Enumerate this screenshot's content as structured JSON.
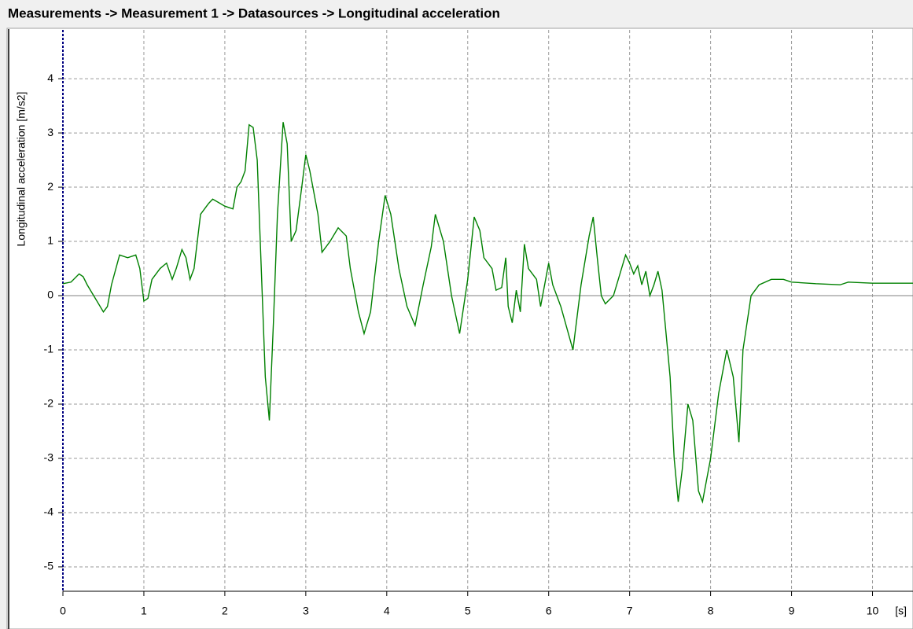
{
  "chart_data": {
    "type": "line",
    "title": "Measurements -> Measurement 1 -> Datasources -> Longitudinal acceleration",
    "ylabel": "Longitudinal acceleration [m/s2]",
    "xlabel": "[s]",
    "xlim": [
      0,
      10.5
    ],
    "ylim": [
      -5.45,
      4.9
    ],
    "xticks": [
      0,
      1,
      2,
      3,
      4,
      5,
      6,
      7,
      8,
      9,
      10
    ],
    "yticks": [
      -5,
      -4,
      -3,
      -2,
      -1,
      0,
      1,
      2,
      3,
      4
    ],
    "grid": true,
    "series": [
      {
        "name": "Longitudinal acceleration",
        "color": "#008000",
        "x": [
          0,
          0.1,
          0.2,
          0.25,
          0.3,
          0.4,
          0.5,
          0.55,
          0.6,
          0.7,
          0.8,
          0.9,
          0.95,
          1.0,
          1.05,
          1.1,
          1.2,
          1.28,
          1.35,
          1.4,
          1.47,
          1.52,
          1.57,
          1.62,
          1.7,
          1.8,
          1.85,
          2.0,
          2.1,
          2.15,
          2.2,
          2.25,
          2.3,
          2.35,
          2.4,
          2.45,
          2.5,
          2.55,
          2.6,
          2.65,
          2.72,
          2.77,
          2.82,
          2.88,
          2.95,
          3.0,
          3.05,
          3.15,
          3.2,
          3.3,
          3.4,
          3.5,
          3.55,
          3.65,
          3.72,
          3.8,
          3.9,
          3.98,
          4.05,
          4.15,
          4.25,
          4.35,
          4.45,
          4.55,
          4.6,
          4.7,
          4.8,
          4.9,
          5.0,
          5.08,
          5.15,
          5.2,
          5.3,
          5.35,
          5.42,
          5.47,
          5.5,
          5.55,
          5.6,
          5.65,
          5.7,
          5.75,
          5.85,
          5.9,
          5.95,
          6.0,
          6.05,
          6.15,
          6.3,
          6.4,
          6.5,
          6.55,
          6.6,
          6.65,
          6.7,
          6.8,
          6.9,
          6.95,
          7.0,
          7.05,
          7.1,
          7.15,
          7.2,
          7.25,
          7.3,
          7.35,
          7.4,
          7.5,
          7.55,
          7.6,
          7.65,
          7.72,
          7.78,
          7.85,
          7.9,
          8.0,
          8.1,
          8.2,
          8.28,
          8.35,
          8.4,
          8.5,
          8.6,
          8.75,
          8.9,
          9.0,
          9.3,
          9.6,
          9.7,
          10.0,
          10.5
        ],
        "values": [
          0.22,
          0.25,
          0.4,
          0.35,
          0.2,
          -0.05,
          -0.3,
          -0.2,
          0.2,
          0.75,
          0.7,
          0.75,
          0.5,
          -0.1,
          -0.05,
          0.3,
          0.5,
          0.6,
          0.3,
          0.5,
          0.85,
          0.7,
          0.3,
          0.5,
          1.5,
          1.7,
          1.78,
          1.65,
          1.6,
          2.0,
          2.1,
          2.3,
          3.15,
          3.1,
          2.5,
          0.5,
          -1.5,
          -2.3,
          -0.5,
          1.5,
          3.2,
          2.8,
          1.0,
          1.2,
          2.0,
          2.6,
          2.3,
          1.5,
          0.8,
          1.0,
          1.25,
          1.1,
          0.5,
          -0.3,
          -0.7,
          -0.3,
          1.0,
          1.85,
          1.5,
          0.5,
          -0.2,
          -0.55,
          0.2,
          0.9,
          1.5,
          1.0,
          0.0,
          -0.7,
          0.3,
          1.45,
          1.2,
          0.7,
          0.5,
          0.1,
          0.15,
          0.7,
          -0.2,
          -0.5,
          0.1,
          -0.3,
          0.95,
          0.5,
          0.3,
          -0.2,
          0.2,
          0.6,
          0.2,
          -0.2,
          -1.0,
          0.2,
          1.1,
          1.45,
          0.7,
          0.0,
          -0.15,
          0.0,
          0.5,
          0.75,
          0.6,
          0.4,
          0.55,
          0.2,
          0.45,
          0.0,
          0.2,
          0.45,
          0.1,
          -1.5,
          -3.0,
          -3.8,
          -3.2,
          -2.0,
          -2.3,
          -3.6,
          -3.8,
          -3.0,
          -1.8,
          -1.0,
          -1.5,
          -2.7,
          -1.0,
          0.0,
          0.2,
          0.3,
          0.3,
          0.25,
          0.22,
          0.2,
          0.25,
          0.23,
          0.23
        ]
      }
    ]
  }
}
